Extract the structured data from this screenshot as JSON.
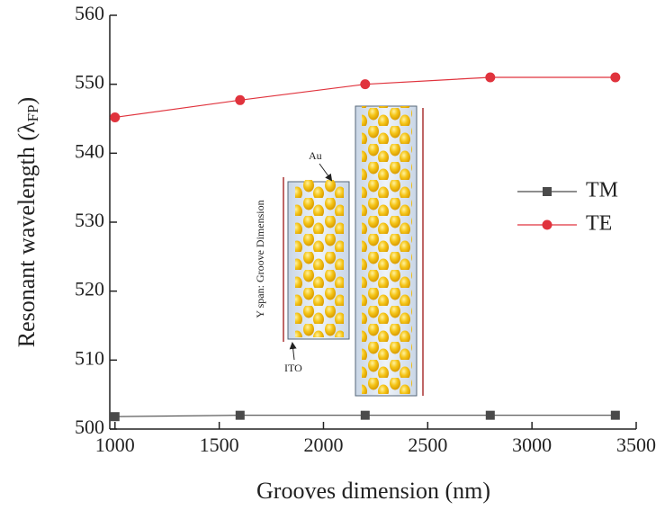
{
  "chart_data": {
    "type": "line",
    "xlabel": "Grooves dimension (nm)",
    "ylabel": {
      "text": "Resonant wavelength (λ",
      "sub": "FP",
      "end": ")"
    },
    "xlim": [
      975,
      3500
    ],
    "xticks": [
      1000,
      1500,
      2000,
      2500,
      3000,
      3500
    ],
    "ylim": [
      500,
      560
    ],
    "yticks": [
      500,
      510,
      520,
      530,
      540,
      550,
      560
    ],
    "x": [
      1000,
      1600,
      2200,
      2800,
      3400
    ],
    "series": [
      {
        "name": "TM",
        "color": "#4a4a4a",
        "marker": "square",
        "values": [
          501.8,
          502,
          502,
          502,
          502
        ]
      },
      {
        "name": "TE",
        "color": "#e0333d",
        "marker": "circle",
        "values": [
          545.2,
          547.7,
          550,
          551,
          551
        ]
      }
    ],
    "legend": "right",
    "inset": {
      "au": "Au",
      "ito": "ITO",
      "span": "Y span: Groove Dimension"
    }
  }
}
